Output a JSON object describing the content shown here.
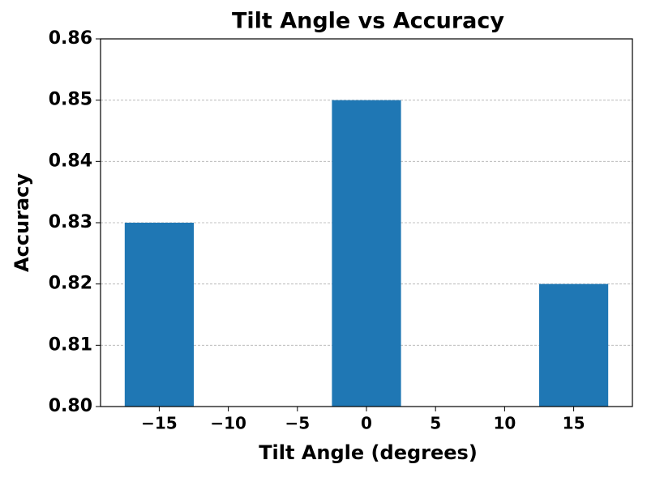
{
  "chart_data": {
    "type": "bar",
    "title": "Tilt Angle vs Accuracy",
    "x_label": "Tilt Angle (degrees)",
    "y_label": "Accuracy",
    "x": [
      -15,
      0,
      15
    ],
    "values": [
      0.83,
      0.85,
      0.82
    ],
    "color": "#1f77b4",
    "bar_width": 5,
    "xlim": [
      -19.25,
      19.25
    ],
    "xticks": [
      {
        "value": -15,
        "label": "−15"
      },
      {
        "value": -10,
        "label": "−10"
      },
      {
        "value": -5,
        "label": "−5"
      },
      0,
      5,
      10,
      15
    ],
    "ylim": [
      0.8,
      0.86
    ],
    "yticks": [
      {
        "value": 0.8,
        "label": "0.80"
      },
      0.81,
      0.82,
      0.83,
      0.84,
      0.85,
      0.86
    ],
    "grid": true
  }
}
